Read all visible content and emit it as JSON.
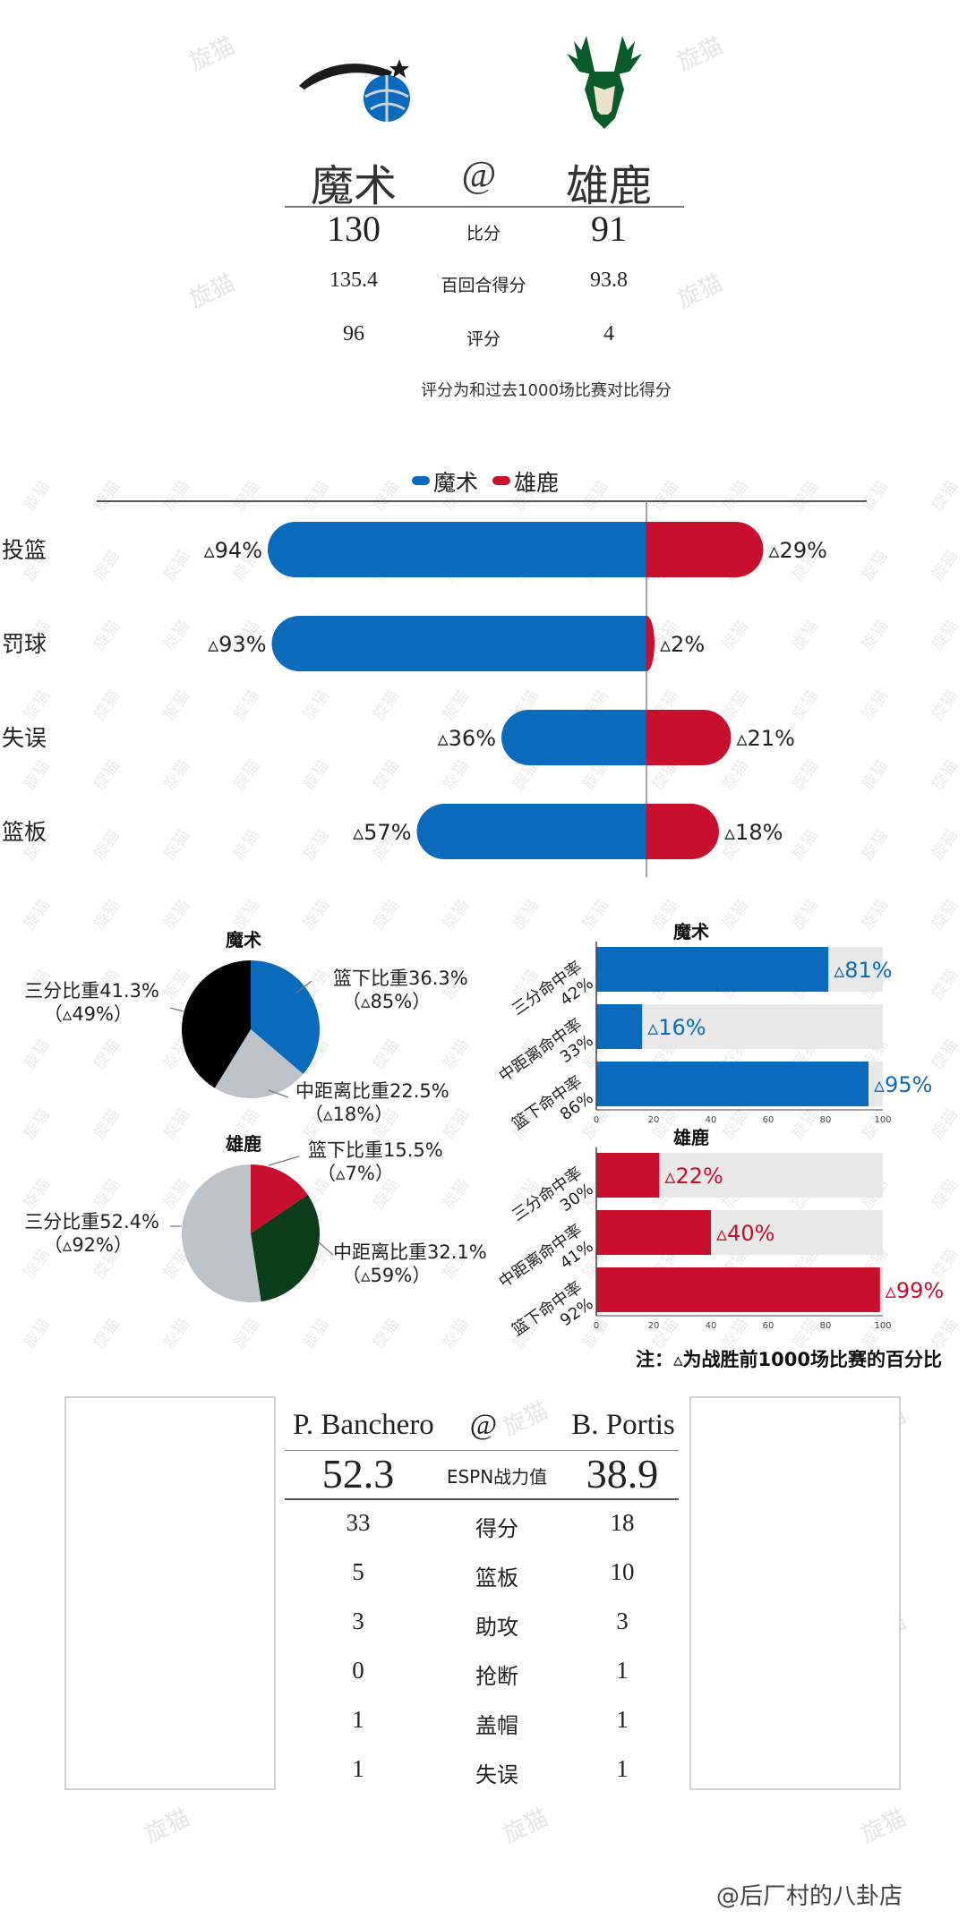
{
  "watermark": "旋猫",
  "header": {
    "home_team": "魔术",
    "at": "@",
    "away_team": "雄鹿",
    "home_logo_icon": "magic-logo-icon",
    "away_logo_icon": "bucks-logo-icon",
    "rows": [
      {
        "label": "比分",
        "home": "130",
        "away": "91"
      },
      {
        "label": "百回合得分",
        "home": "135.4",
        "away": "93.8"
      },
      {
        "label": "评分",
        "home": "96",
        "away": "4"
      }
    ],
    "note": "评分为和过去1000场比赛对比得分"
  },
  "colors": {
    "magic_blue": "#0a6bbd",
    "bucks_red": "#c8102e",
    "black": "#000000",
    "gray": "#bdc3c9",
    "dark_green": "#0b3d1a",
    "track": "#e8e8e8"
  },
  "chart_data": [
    {
      "type": "bar",
      "orientation": "diverging-horizontal",
      "legend": [
        "魔术",
        "雄鹿"
      ],
      "legend_placement": "top",
      "categories": [
        "投篮",
        "罚球",
        "失误",
        "篮板"
      ],
      "series": [
        {
          "name": "魔术",
          "values": [
            94,
            93,
            36,
            57
          ],
          "labels": [
            "▵94%",
            "▵93%",
            "▵36%",
            "▵57%"
          ]
        },
        {
          "name": "雄鹿",
          "values": [
            29,
            2,
            21,
            18
          ],
          "labels": [
            "▵29%",
            "▵2%",
            "▵21%",
            "▵18%"
          ]
        }
      ],
      "xlim": [
        -100,
        100
      ]
    },
    {
      "type": "pie",
      "title": "魔术",
      "slices": [
        {
          "name": "篮下比重",
          "value": 36.3,
          "label": "篮下比重36.3%",
          "sub": "（▵85%）"
        },
        {
          "name": "中距离比重",
          "value": 22.5,
          "label": "中距离比重22.5%",
          "sub": "（▵18%）"
        },
        {
          "name": "三分比重",
          "value": 41.3,
          "label": "三分比重41.3%",
          "sub": "（▵49%）"
        }
      ]
    },
    {
      "type": "pie",
      "title": "雄鹿",
      "slices": [
        {
          "name": "篮下比重",
          "value": 15.5,
          "label": "篮下比重15.5%",
          "sub": "（▵7%）"
        },
        {
          "name": "中距离比重",
          "value": 32.1,
          "label": "中距离比重32.1%",
          "sub": "（▵59%）"
        },
        {
          "name": "三分比重",
          "value": 52.4,
          "label": "三分比重52.4%",
          "sub": "（▵92%）"
        }
      ]
    },
    {
      "type": "bar",
      "orientation": "horizontal",
      "title": "魔术",
      "categories": [
        "三分命中率",
        "中距离命中率",
        "篮下命中率"
      ],
      "category_values": [
        "42%",
        "33%",
        "86%"
      ],
      "values": [
        81,
        16,
        95
      ],
      "labels": [
        "▵81%",
        "▵16%",
        "▵95%"
      ],
      "xlim": [
        0,
        100
      ],
      "xticks": [
        "0",
        "20",
        "40",
        "60",
        "80",
        "100"
      ]
    },
    {
      "type": "bar",
      "orientation": "horizontal",
      "title": "雄鹿",
      "categories": [
        "三分命中率",
        "中距离命中率",
        "篮下命中率"
      ],
      "category_values": [
        "30%",
        "41%",
        "92%"
      ],
      "values": [
        22,
        40,
        99
      ],
      "labels": [
        "▵22%",
        "▵40%",
        "▵99%"
      ],
      "xlim": [
        0,
        100
      ],
      "xticks": [
        "0",
        "20",
        "40",
        "60",
        "80",
        "100"
      ]
    }
  ],
  "footnote": "注：▵为战胜前1000场比赛的百分比",
  "players": {
    "home_name": "P. Banchero",
    "at": "@",
    "away_name": "B. Portis",
    "headline": {
      "label": "ESPN战力值",
      "home": "52.3",
      "away": "38.9"
    },
    "rows": [
      {
        "label": "得分",
        "home": "33",
        "away": "18"
      },
      {
        "label": "篮板",
        "home": "5",
        "away": "10"
      },
      {
        "label": "助攻",
        "home": "3",
        "away": "3"
      },
      {
        "label": "抢断",
        "home": "0",
        "away": "1"
      },
      {
        "label": "盖帽",
        "home": "1",
        "away": "1"
      },
      {
        "label": "失误",
        "home": "1",
        "away": "1"
      }
    ]
  },
  "signature": "@后厂村的八卦店"
}
